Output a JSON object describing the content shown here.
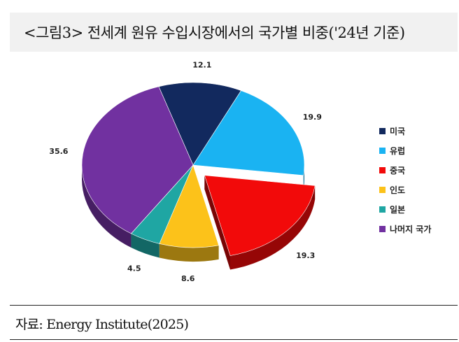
{
  "title": "<그림3> 전세계 원유 수입시장에서의 국가별 비중('24년 기준)",
  "source": "자료: Energy Institute(2025)",
  "chart_data": {
    "type": "pie",
    "style": "3d-exploded",
    "unit": "%",
    "legend_position": "right",
    "slices": [
      {
        "name": "미국",
        "value": 12.1,
        "color": "#12295e"
      },
      {
        "name": "유럽",
        "value": 19.9,
        "color": "#1ab3f2"
      },
      {
        "name": "중국",
        "value": 19.3,
        "color": "#f20a0a",
        "exploded": true,
        "label_color": "#d32020"
      },
      {
        "name": "인도",
        "value": 8.6,
        "color": "#fcc21a"
      },
      {
        "name": "일본",
        "value": 4.5,
        "color": "#1fa6a3"
      },
      {
        "name": "나머지 국가",
        "value": 35.6,
        "color": "#7131a0"
      }
    ]
  }
}
